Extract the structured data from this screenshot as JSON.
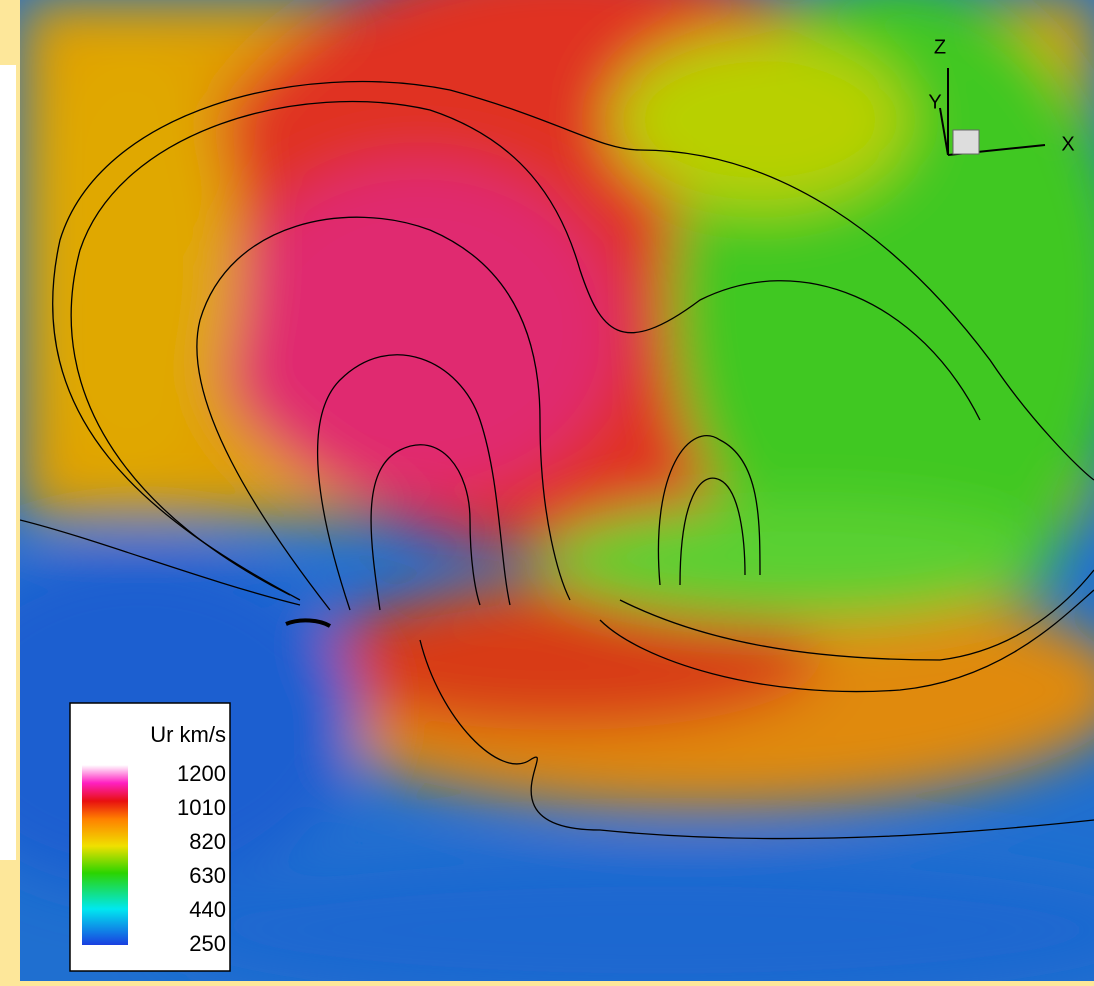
{
  "colorbar": {
    "title": "Ur km/s",
    "ticks": [
      1200,
      1010,
      820,
      630,
      440,
      250
    ]
  },
  "axes": {
    "z": "Z",
    "y": "Y",
    "x": "X"
  }
}
